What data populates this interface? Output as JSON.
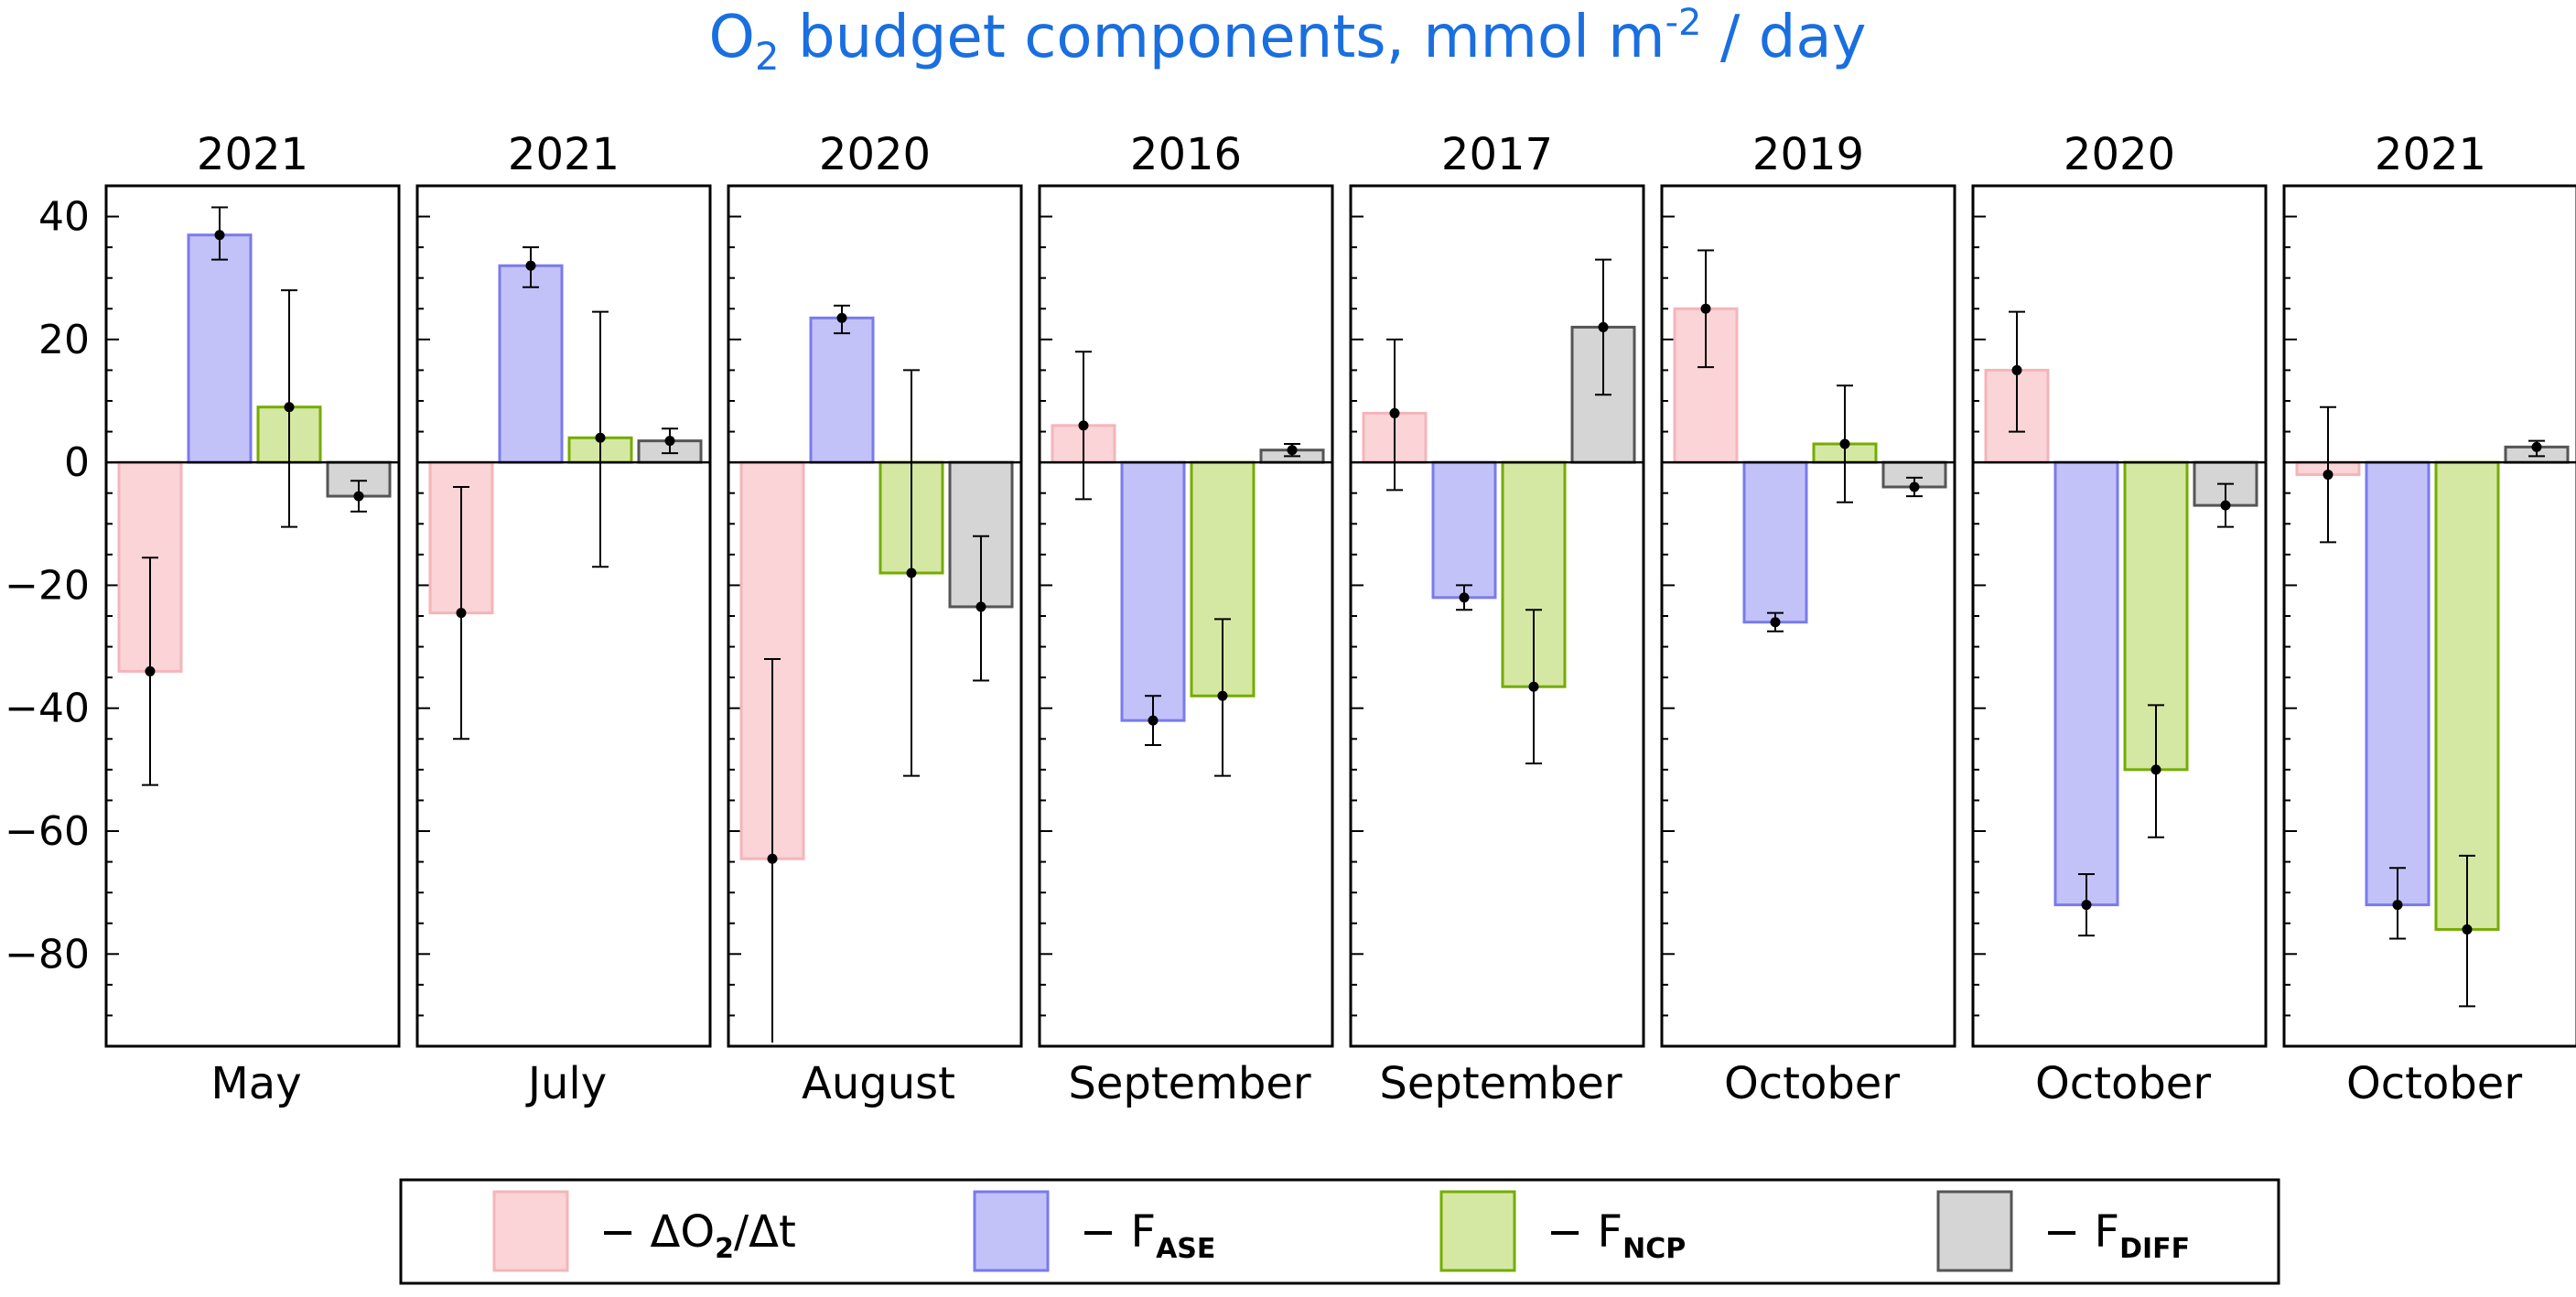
{
  "chart_data": {
    "type": "bar",
    "title": "O2 budget components, mmol m-2 / day",
    "title_parts": {
      "o": "O",
      "o_sub": "2",
      "middle": " budget components, mmol m",
      "exp": "-2",
      "end": " / day"
    },
    "title_color": "#1a6fe0",
    "ylim": [
      -95,
      45
    ],
    "yticks": [
      40,
      20,
      0,
      -20,
      -40,
      -60,
      -80
    ],
    "ytick_labels": [
      "40",
      "20",
      "0",
      "−20",
      "−40",
      "−60",
      "−80"
    ],
    "series": [
      {
        "name": "−ΔO2/Δt",
        "symbol": "ΔO",
        "sub": "2",
        "suffix": "/Δt",
        "fill": "#fad4d7",
        "stroke": "#f4b5ba"
      },
      {
        "name": "−FASE",
        "symbol": "F",
        "sub": "ASE",
        "suffix": "",
        "fill": "#c2c2f9",
        "stroke": "#7a7aec"
      },
      {
        "name": "−FNCP",
        "symbol": "F",
        "sub": "NCP",
        "suffix": "",
        "fill": "#d5e8a3",
        "stroke": "#74ac00"
      },
      {
        "name": "−FDIFF",
        "symbol": "F",
        "sub": "DIFF",
        "suffix": "",
        "fill": "#d5d5d5",
        "stroke": "#555555"
      }
    ],
    "dash": "−",
    "panels": [
      {
        "year": "2021",
        "month": "May",
        "values": [
          -34,
          37,
          9,
          -5.5
        ],
        "errors": [
          [
            -52.5,
            -15.5
          ],
          [
            33,
            41.5
          ],
          [
            -10.5,
            28
          ],
          [
            -8,
            -3
          ]
        ]
      },
      {
        "year": "2021",
        "month": "July",
        "values": [
          -24.5,
          32,
          4,
          3.5
        ],
        "errors": [
          [
            -45,
            -4
          ],
          [
            28.5,
            35
          ],
          [
            -17,
            24.5
          ],
          [
            1.5,
            5.5
          ]
        ]
      },
      {
        "year": "2020",
        "month": "August",
        "values": [
          -64.5,
          23.5,
          -18,
          -23.5
        ],
        "errors": [
          [
            -97,
            -32
          ],
          [
            21,
            25.5
          ],
          [
            -51,
            15
          ],
          [
            -35.5,
            -12
          ]
        ]
      },
      {
        "year": "2016",
        "month": "September",
        "values": [
          6,
          -42,
          -38,
          2
        ],
        "errors": [
          [
            -6,
            18
          ],
          [
            -46,
            -38
          ],
          [
            -51,
            -25.5
          ],
          [
            1,
            3
          ]
        ]
      },
      {
        "year": "2017",
        "month": "September",
        "values": [
          8,
          -22,
          -36.5,
          22
        ],
        "errors": [
          [
            -4.5,
            20
          ],
          [
            -24,
            -20
          ],
          [
            -49,
            -24
          ],
          [
            11,
            33
          ]
        ]
      },
      {
        "year": "2019",
        "month": "October",
        "values": [
          25,
          -26,
          3,
          -4
        ],
        "errors": [
          [
            15.5,
            34.5
          ],
          [
            -27.5,
            -24.5
          ],
          [
            -6.5,
            12.5
          ],
          [
            -5.5,
            -2.5
          ]
        ]
      },
      {
        "year": "2020",
        "month": "October",
        "values": [
          15,
          -72,
          -50,
          -7
        ],
        "errors": [
          [
            5,
            24.5
          ],
          [
            -77,
            -67
          ],
          [
            -61,
            -39.5
          ],
          [
            -10.5,
            -3.5
          ]
        ]
      },
      {
        "year": "2021",
        "month": "October",
        "values": [
          -2,
          -72,
          -76,
          2.5
        ],
        "errors": [
          [
            -13,
            9
          ],
          [
            -77.5,
            -66
          ],
          [
            -88.5,
            -64
          ],
          [
            1,
            3.5
          ]
        ]
      }
    ]
  }
}
